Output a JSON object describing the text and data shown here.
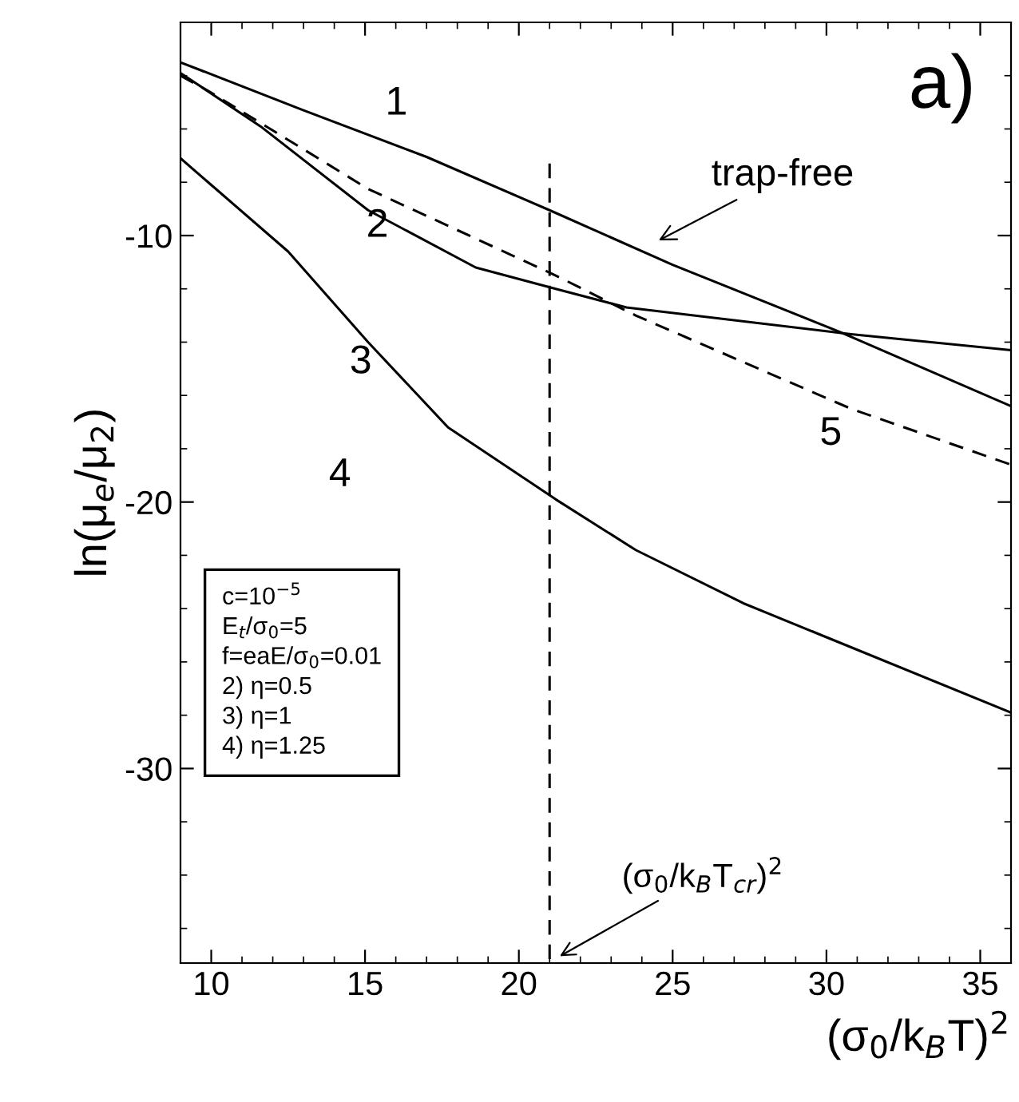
{
  "chart_data": {
    "type": "line",
    "xlabel": "(σ$_{0}$/k$_{B}$T)$^{2}$",
    "ylabel": "ln(μ$_{e}$/μ$_{2}$)",
    "xlim": [
      9,
      36
    ],
    "ylim": [
      -37.3,
      -2
    ],
    "xticks": [
      10,
      15,
      20,
      25,
      30,
      35
    ],
    "yticks": [
      -10,
      -20,
      -30
    ],
    "grid": false,
    "legend": false,
    "marker": "none",
    "series": [
      {
        "color": "#000000",
        "line_style": "solid",
        "x": [
          9,
          13,
          17,
          21,
          25,
          30.4,
          36
        ],
        "values": [
          -3.5,
          -5.3,
          -7.05,
          -9.05,
          -11.1,
          -13.6,
          -16.4
        ]
      },
      {
        "color": "#000000",
        "line_style": "solid",
        "x": [
          9,
          11.6,
          15.1,
          18.6,
          21.2,
          23.5,
          30.8,
          36
        ],
        "values": [
          -3.9,
          -5.9,
          -9.05,
          -11.2,
          -12.0,
          -12.7,
          -13.7,
          -14.3
        ]
      },
      {
        "color": "#000000",
        "line_style": "solid",
        "x": [
          9,
          9.9,
          12.5,
          15.1,
          17.7,
          21.2,
          23.8,
          27.3,
          36
        ],
        "values": [
          -7.1,
          -8.0,
          -10.6,
          -14.0,
          -17.2,
          -19.9,
          -21.8,
          -23.8,
          -27.9
        ]
      },
      {
        "color": "#000000",
        "line_style": "dashed",
        "x": [
          9,
          9.9,
          15.1,
          21.2,
          23.8,
          30.8,
          36
        ],
        "values": [
          -4.0,
          -4.57,
          -8.25,
          -11.5,
          -13.0,
          -16.5,
          -18.6
        ]
      },
      {
        "color": "#000000",
        "line_style": "dashed",
        "x": [
          21,
          21
        ],
        "values": [
          -7.3,
          -37.3
        ]
      }
    ],
    "annotations": [
      "1",
      "2",
      "3",
      "4",
      "5",
      "a)",
      "trap-free",
      "(σ$_{0}$/k$_{B}$T$_{cr}$)$^{2}$",
      "c=10$^{−5}$\nE$_{t}$/σ$_{0}$=5\nf=eaE/σ$_{0}$=0.01\n2) η=0.5\n3) η=1\n4) η=1.25"
    ]
  }
}
